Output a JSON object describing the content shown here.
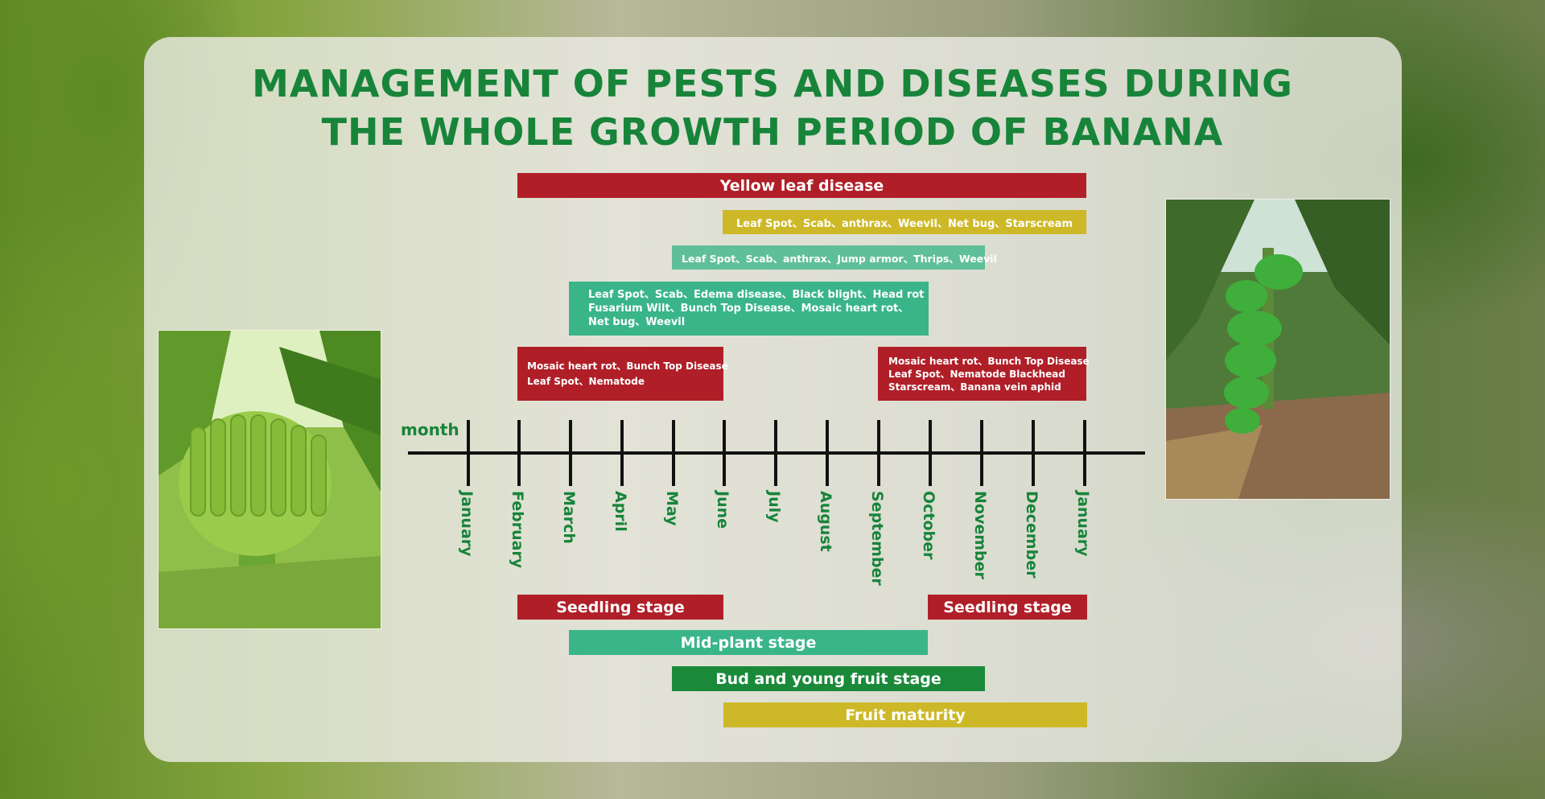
{
  "title_lines": [
    "MANAGEMENT OF PESTS AND DISEASES DURING",
    "THE WHOLE GROWTH PERIOD OF BANANA"
  ],
  "axis_unit": "month",
  "months": [
    "January",
    "February",
    "March",
    "April",
    "May",
    "June",
    "July",
    "August",
    "September",
    "October",
    "November",
    "December",
    "January"
  ],
  "pest_bars": [
    {
      "label": "Yellow leaf disease"
    },
    {
      "label": "Leaf Spot、Scab、anthrax、Weevil、Net bug、Starscream"
    },
    {
      "label": "Leaf Spot、Scab、anthrax、Jump armor、Thrips、Weevil"
    },
    {
      "lines": [
        "Leaf Spot、Scab、Edema disease、Black blight、Head rot",
        "Fusarium Wilt、Bunch Top Disease、Mosaic heart rot、",
        "Net bug、Weevil"
      ]
    },
    {
      "lines": [
        "Mosaic heart rot、Bunch Top Disease",
        "Leaf Spot、Nematode"
      ]
    },
    {
      "lines": [
        "Mosaic heart rot、Bunch Top Disease",
        "Leaf Spot、Nematode Blackhead",
        "Starscream、Banana vein aphid"
      ]
    }
  ],
  "stages": [
    {
      "label": "Seedling stage"
    },
    {
      "label": "Seedling stage"
    },
    {
      "label": "Mid-plant stage"
    },
    {
      "label": "Bud and young fruit stage"
    },
    {
      "label": "Fruit maturity"
    }
  ],
  "colors": {
    "title": "#17843a",
    "red": "#b01f28",
    "yellow": "#cdb928",
    "teal": "#3ab58a",
    "green": "#1a8a3a"
  }
}
